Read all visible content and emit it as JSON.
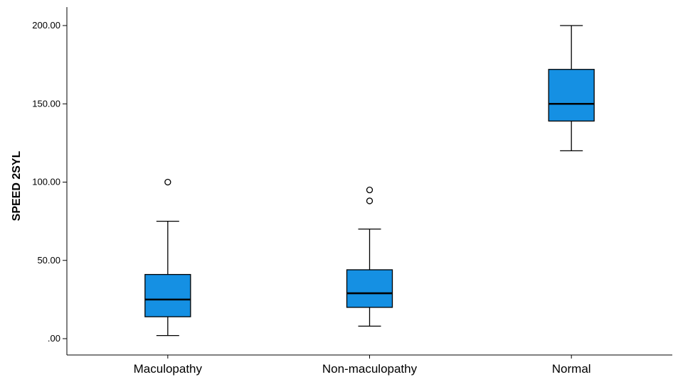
{
  "chart_data": {
    "type": "boxplot",
    "title": "",
    "xlabel": "",
    "ylabel": "SPEED 2SYL",
    "ylim": [
      -5,
      212
    ],
    "yticks": [
      0,
      50,
      100,
      150,
      200
    ],
    "ytick_labels": [
      ".00",
      "50.00",
      "100.00",
      "150.00",
      "200.00"
    ],
    "grid": false,
    "legend": "none",
    "box_color": "#1590e3",
    "line_color": "#000000",
    "categories": [
      "Maculopathy",
      "Non-maculopathy",
      "Normal"
    ],
    "series": [
      {
        "category": "Maculopathy",
        "min": 2,
        "q1": 14,
        "median": 25,
        "q3": 41,
        "max": 75,
        "outliers": [
          100
        ]
      },
      {
        "category": "Non-maculopathy",
        "min": 8,
        "q1": 20,
        "median": 29,
        "q3": 44,
        "max": 70,
        "outliers": [
          88,
          95
        ]
      },
      {
        "category": "Normal",
        "min": 120,
        "q1": 139,
        "median": 150,
        "q3": 172,
        "max": 200,
        "outliers": []
      }
    ]
  }
}
